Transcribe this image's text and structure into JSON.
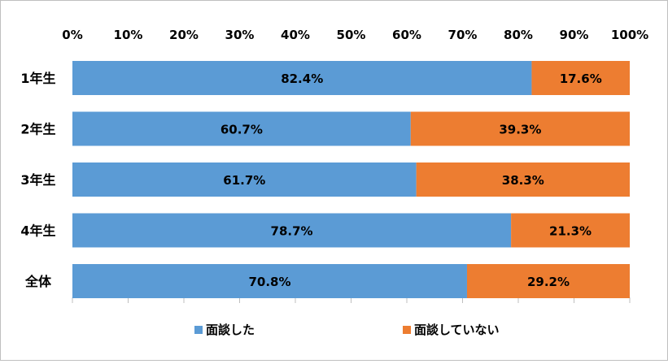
{
  "chart_data": {
    "type": "bar",
    "orientation": "horizontal",
    "stacked": true,
    "categories": [
      "1年生",
      "2年生",
      "3年生",
      "4年生",
      "全体"
    ],
    "series": [
      {
        "name": "面談した",
        "values": [
          82.4,
          60.7,
          61.7,
          78.7,
          70.8
        ],
        "labels": [
          "82.4%",
          "60.7%",
          "61.7%",
          "78.7%",
          "70.8%"
        ],
        "color": "#5b9bd5"
      },
      {
        "name": "面談していない",
        "values": [
          17.6,
          39.3,
          38.3,
          21.3,
          29.2
        ],
        "labels": [
          "17.6%",
          "39.3%",
          "38.3%",
          "21.3%",
          "29.2%"
        ],
        "color": "#ed7d31"
      }
    ],
    "x_ticks": [
      "0%",
      "10%",
      "20%",
      "30%",
      "40%",
      "50%",
      "60%",
      "70%",
      "80%",
      "90%",
      "100%"
    ],
    "xlim": [
      0,
      100
    ],
    "axis_position": "top",
    "grid": false,
    "legend": "bottom"
  }
}
